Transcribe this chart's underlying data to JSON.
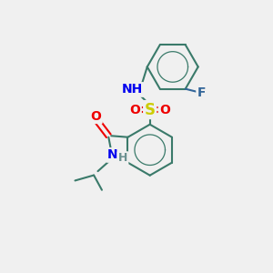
{
  "bg_color": "#f0f0f0",
  "atom_colors": {
    "C": "#3a7a6a",
    "H": "#6a9090",
    "N": "#0000ee",
    "O": "#ee0000",
    "S": "#cccc00",
    "F": "#336699"
  },
  "bond_color": "#3a7a6a",
  "bond_width": 1.5,
  "font_size": 10,
  "fig_size": [
    3.0,
    3.0
  ],
  "dpi": 100
}
